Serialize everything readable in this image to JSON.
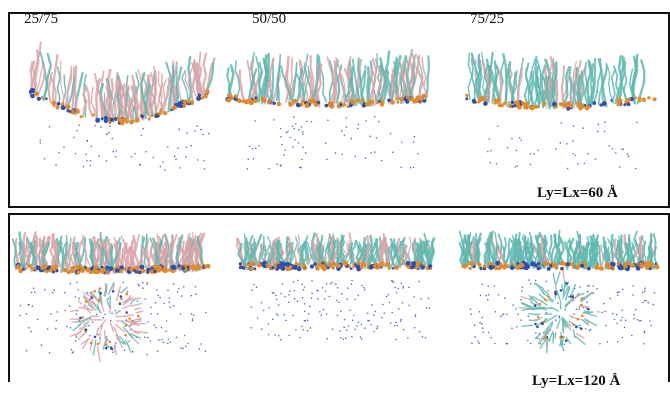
{
  "top_panel": {
    "ratio_labels": [
      "25/75",
      "50/50",
      "75/25"
    ],
    "size_label": "Ly=Lx=60 Å"
  },
  "bottom_panel": {
    "size_label": "Ly=Lx=120 Å"
  },
  "colors": {
    "pink_tails": "#d9a3a8",
    "cyan_tails": "#5fb8b0",
    "orange_heads": "#e08a2c",
    "blue_atoms": "#2c4fb0"
  }
}
